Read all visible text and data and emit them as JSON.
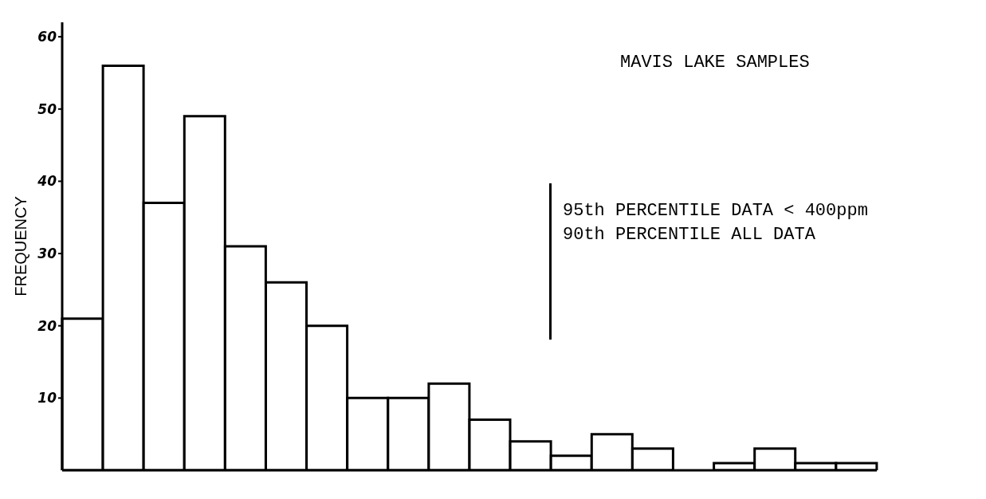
{
  "chart_data": {
    "type": "bar",
    "title": "MAVIS LAKE SAMPLES",
    "ylabel": "FREQUENCY",
    "categories": [
      null,
      null,
      null,
      null,
      null,
      null,
      null,
      null,
      null,
      null,
      null,
      null,
      null,
      null,
      null,
      null,
      null,
      null,
      null,
      null
    ],
    "values": [
      21,
      56,
      37,
      49,
      31,
      26,
      20,
      10,
      10,
      12,
      7,
      4,
      2,
      5,
      3,
      0,
      1,
      3,
      1,
      1
    ],
    "color": "#ffffff",
    "ylim": [
      0,
      62
    ],
    "yticks": [
      10,
      20,
      30,
      40,
      50,
      60
    ],
    "annotations": [
      "95th PERCENTILE DATA < 400ppm",
      "90th PERCENTILE ALL DATA"
    ]
  }
}
